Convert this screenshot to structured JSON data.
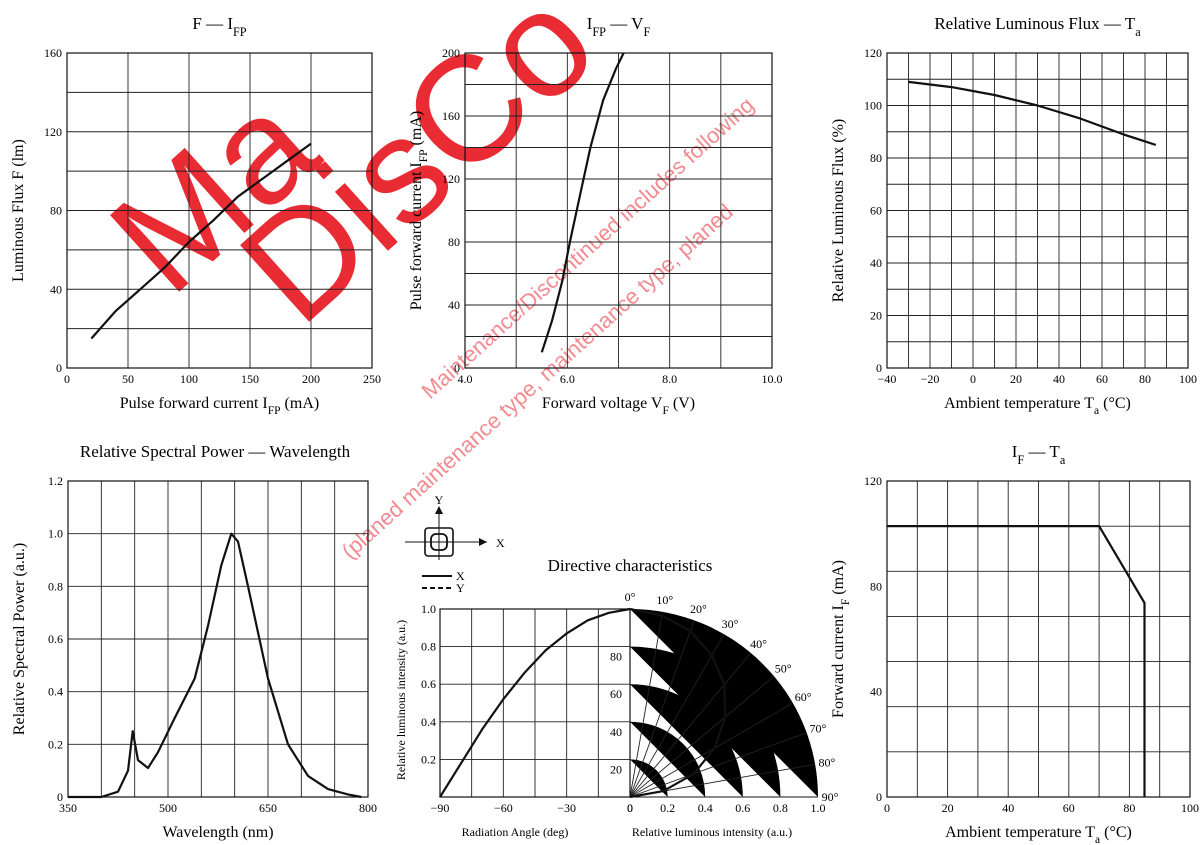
{
  "watermark": {
    "large_1": "Ma",
    "large_2": "DisCo",
    "line_1": "Maintenance/Discontinued includes following",
    "line_2": "(planed maintenance type, maintenance type, planed"
  },
  "chart_data": [
    {
      "id": "flux-vs-ifp",
      "type": "line",
      "title": "F — I",
      "title_sub": "FP",
      "xlabel": "Pulse forward current  I",
      "xlabel_sub": "FP",
      "xlabel_unit": "  (mA)",
      "ylabel": "Luminous Flux  F  (lm)",
      "xlim": [
        0,
        250
      ],
      "ylim": [
        0,
        160
      ],
      "xticks": [
        "0",
        "50",
        "100",
        "150",
        "200",
        "250"
      ],
      "yticks": [
        "0",
        "40",
        "80",
        "120",
        "160"
      ],
      "series": [
        {
          "points": [
            [
              20,
              15
            ],
            [
              40,
              29
            ],
            [
              60,
              40
            ],
            [
              80,
              51
            ],
            [
              100,
              64
            ],
            [
              120,
              75
            ],
            [
              140,
              87
            ],
            [
              160,
              96
            ],
            [
              180,
              105
            ],
            [
              200,
              114
            ]
          ]
        }
      ]
    },
    {
      "id": "ifp-vs-vf",
      "type": "line",
      "title": "I",
      "title_sub": "FP",
      "title_tail": " — V",
      "title_tail_sub": "F",
      "xlabel": "Forward voltage  V",
      "xlabel_sub": "F",
      "xlabel_unit": "  (V)",
      "ylabel": "Pulse forward current  I",
      "ylabel_sub": "FP",
      "ylabel_unit": "  (mA)",
      "xlim": [
        4.0,
        10.0
      ],
      "ylim": [
        0,
        200
      ],
      "xticks": [
        "4.0",
        "6.0",
        "8.0",
        "10.0"
      ],
      "yticks": [
        "0",
        "40",
        "80",
        "120",
        "160",
        "200"
      ],
      "series": [
        {
          "points": [
            [
              5.5,
              10
            ],
            [
              5.7,
              30
            ],
            [
              5.9,
              55
            ],
            [
              6.05,
              80
            ],
            [
              6.25,
              110
            ],
            [
              6.45,
              140
            ],
            [
              6.7,
              170
            ],
            [
              6.95,
              190
            ],
            [
              7.1,
              200
            ]
          ]
        }
      ]
    },
    {
      "id": "flux-vs-ta",
      "type": "line",
      "title": "Relative Luminous Flux — T",
      "title_sub": "a",
      "xlabel": "Ambient temperature  T",
      "xlabel_sub": "a",
      "xlabel_unit": "  (°C)",
      "ylabel": "Relative Luminous Flux  (%)",
      "xlim": [
        -40,
        100
      ],
      "ylim": [
        0,
        120
      ],
      "xticks": [
        "−40",
        "−20",
        "0",
        "20",
        "40",
        "60",
        "80",
        "100"
      ],
      "yticks": [
        "0",
        "20",
        "40",
        "60",
        "80",
        "100",
        "120"
      ],
      "series": [
        {
          "points": [
            [
              -30,
              109
            ],
            [
              -10,
              107
            ],
            [
              10,
              104
            ],
            [
              30,
              100
            ],
            [
              50,
              95
            ],
            [
              70,
              89
            ],
            [
              85,
              85
            ]
          ]
        }
      ]
    },
    {
      "id": "spectrum",
      "type": "line",
      "title": "Relative Spectral Power — Wavelength",
      "xlabel": "Wavelength  (nm)",
      "ylabel": "Relative Spectral Power  (a.u.)",
      "xlim": [
        350,
        800
      ],
      "ylim": [
        0,
        1.2
      ],
      "xticks": [
        "350",
        "500",
        "650",
        "800"
      ],
      "yticks": [
        "0",
        "0.2",
        "0.4",
        "0.6",
        "0.8",
        "1.0",
        "1.2"
      ],
      "series": [
        {
          "points": [
            [
              350,
              0.0
            ],
            [
              400,
              0.0
            ],
            [
              425,
              0.02
            ],
            [
              440,
              0.1
            ],
            [
              447,
              0.25
            ],
            [
              455,
              0.14
            ],
            [
              470,
              0.11
            ],
            [
              485,
              0.17
            ],
            [
              510,
              0.3
            ],
            [
              540,
              0.45
            ],
            [
              560,
              0.65
            ],
            [
              580,
              0.88
            ],
            [
              595,
              1.0
            ],
            [
              605,
              0.97
            ],
            [
              620,
              0.8
            ],
            [
              650,
              0.45
            ],
            [
              680,
              0.2
            ],
            [
              710,
              0.08
            ],
            [
              740,
              0.03
            ],
            [
              770,
              0.01
            ],
            [
              790,
              0.0
            ]
          ]
        }
      ]
    },
    {
      "id": "directive",
      "type": "line",
      "title": "Directive characteristics",
      "xlabel_left": "Radiation Angle  (deg)",
      "xlabel_right": "Relative luminous intensity  (a.u.)",
      "ylabel": "Relative luminous intensity  (a.u.)",
      "left_xticks": [
        "−90",
        "−60",
        "−30",
        "0"
      ],
      "right_xticks": [
        "0",
        "0.2",
        "0.4",
        "0.6",
        "0.8",
        "1.0"
      ],
      "yticks": [
        "0.2",
        "0.4",
        "0.6",
        "0.8",
        "1.0"
      ],
      "inner_labels": [
        "20",
        "40",
        "60",
        "80"
      ],
      "angle_labels": [
        "0°",
        "10°",
        "20°",
        "30°",
        "40°",
        "50°",
        "60°",
        "70°",
        "80°",
        "90°"
      ],
      "legend": {
        "axis_x": "X",
        "axis_y": "Y",
        "line_x": "X",
        "line_y": "Y"
      },
      "series": [
        {
          "angles": [
            0,
            10,
            20,
            30,
            40,
            50,
            60,
            70,
            80,
            90
          ],
          "values": [
            1.0,
            0.98,
            0.94,
            0.87,
            0.78,
            0.66,
            0.52,
            0.36,
            0.18,
            0.0
          ]
        }
      ]
    },
    {
      "id": "if-vs-ta",
      "type": "line",
      "title": "I",
      "title_sub": "F",
      "title_tail": " — T",
      "title_tail_sub": "a",
      "xlabel": "Ambient temperature  T",
      "xlabel_sub": "a",
      "xlabel_unit": "  (°C)",
      "ylabel": "Forward current  I",
      "ylabel_sub": "F",
      "ylabel_unit": "  (mA)",
      "xlim": [
        0,
        100
      ],
      "ylim": [
        0,
        140
      ],
      "xticks": [
        "0",
        "20",
        "40",
        "60",
        "80",
        "100"
      ],
      "yticks": [
        "0",
        "40",
        "80",
        "120"
      ],
      "series": [
        {
          "points": [
            [
              0,
              120
            ],
            [
              70,
              120
            ],
            [
              85,
              86
            ],
            [
              85,
              0
            ]
          ]
        }
      ]
    }
  ]
}
